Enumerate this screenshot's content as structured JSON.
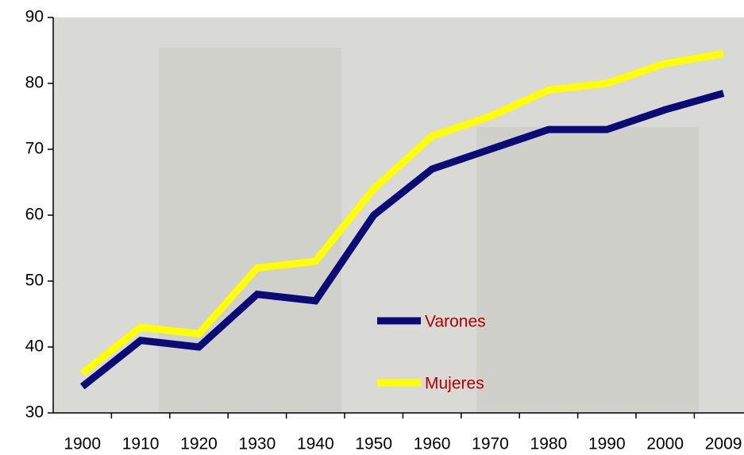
{
  "chart_data": {
    "type": "line",
    "categories": [
      "1900",
      "1910",
      "1920",
      "1930",
      "1940",
      "1950",
      "1960",
      "1970",
      "1980",
      "1990",
      "2000",
      "2009"
    ],
    "series": [
      {
        "name": "Varones",
        "color": "#0b0b78",
        "values": [
          34,
          41,
          40,
          48,
          47,
          60,
          67,
          70,
          73,
          73,
          76,
          78.5
        ]
      },
      {
        "name": "Mujeres",
        "color": "#ffff00",
        "values": [
          36,
          43,
          42,
          52,
          53,
          64,
          72,
          75,
          79,
          80,
          83,
          84.5
        ]
      }
    ],
    "ylim": [
      30,
      90
    ],
    "yticks": [
      30,
      40,
      50,
      60,
      70,
      80,
      90
    ],
    "legend_color": "#b00000"
  }
}
